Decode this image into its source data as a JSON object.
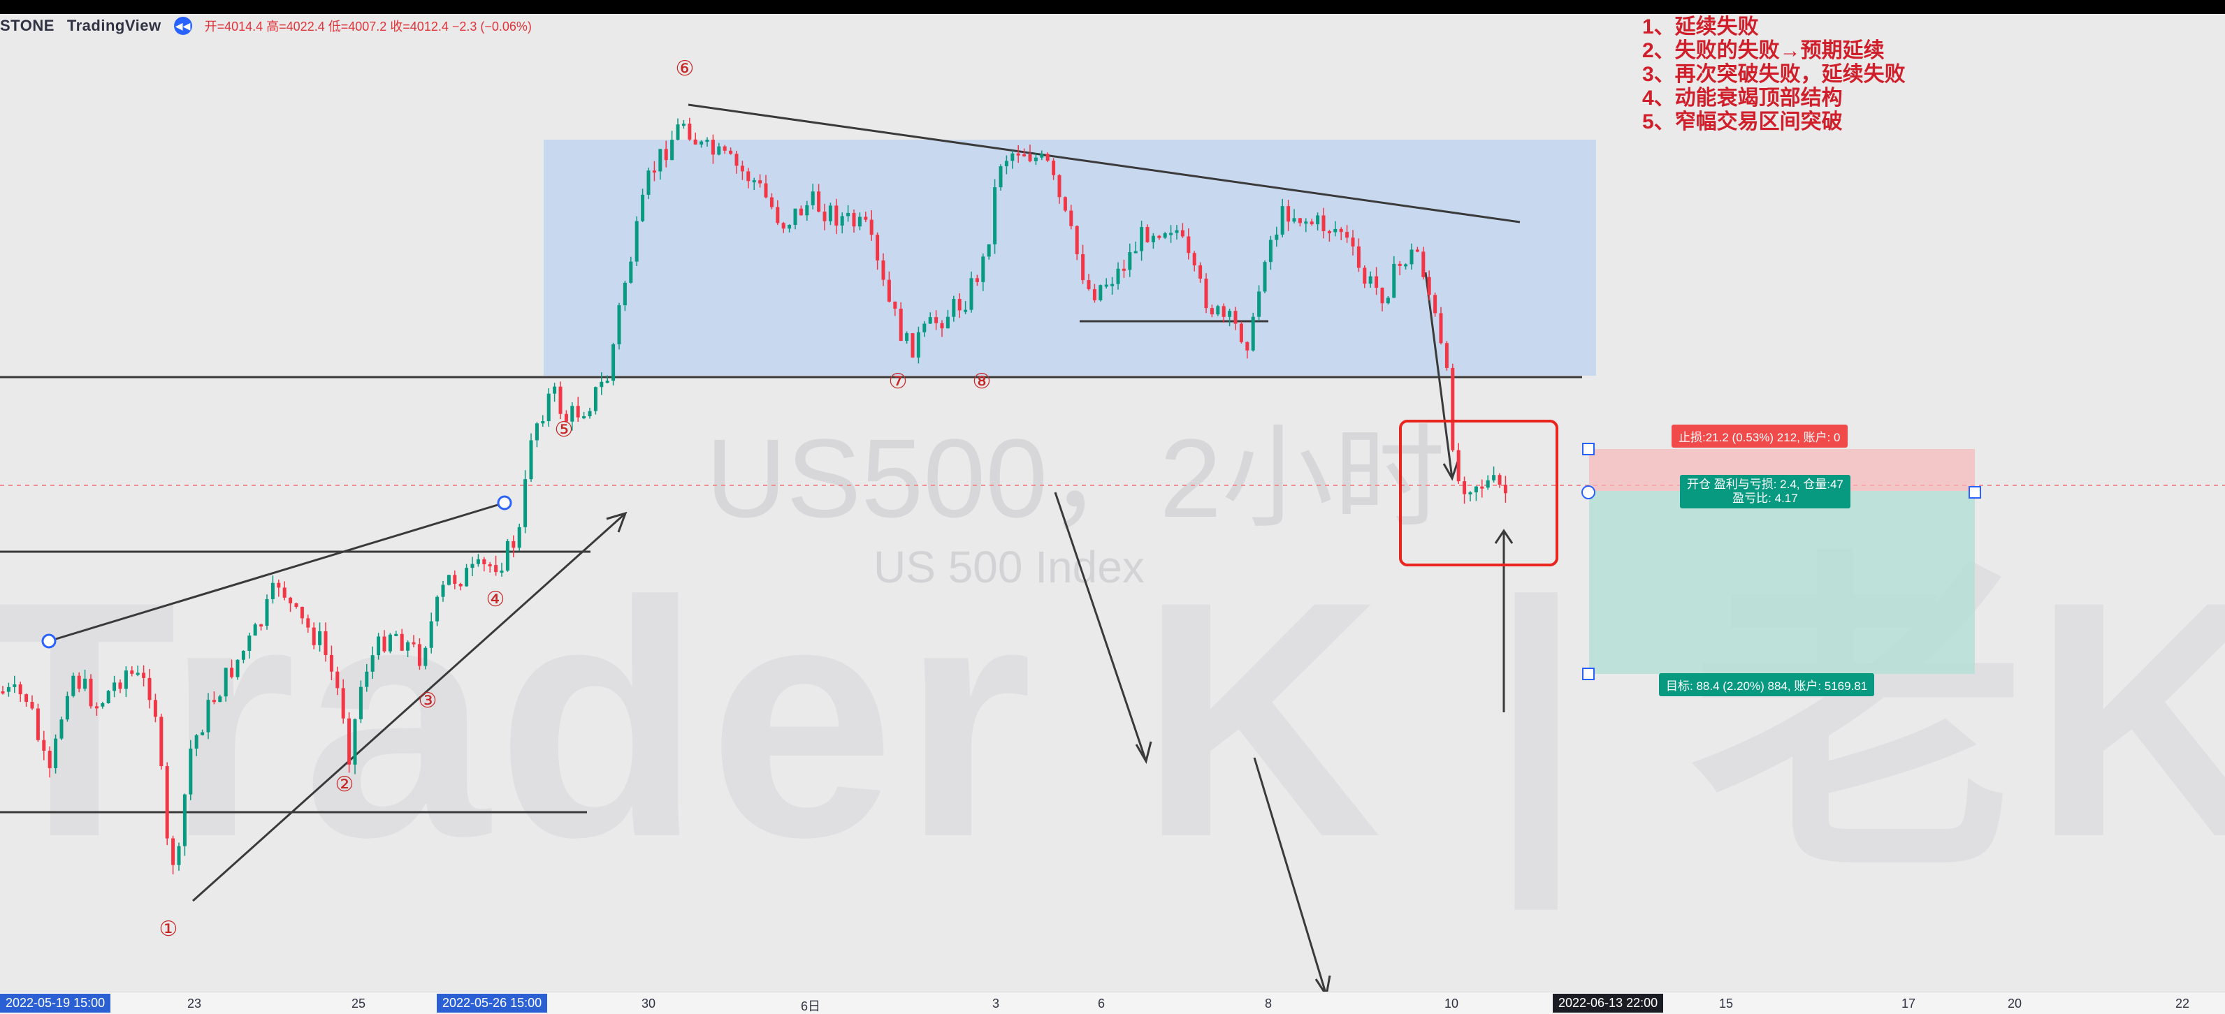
{
  "header": {
    "symbol": "STONE",
    "brand": "TradingView",
    "ohlc": "开=4014.4 高=4022.4 低=4007.2 收=4012.4 −2.3 (−0.06%)"
  },
  "watermark": {
    "title": "US500，2小时",
    "subtitle": "US 500 Index",
    "bg_text": "Trader K | 老K"
  },
  "notes": [
    "1、延续失败",
    "2、失败的失败→预期延续",
    "3、再次突破失败，延续失败",
    "4、动能衰竭顶部结构",
    "5、窄幅交易区间突破"
  ],
  "markers": [
    "①",
    "②",
    "③",
    "④",
    "⑤",
    "⑥",
    "⑦",
    "⑧"
  ],
  "position": {
    "stop_label": "止损:21.2 (0.53%) 212, 账户: 0",
    "open_line1": "开仓 盈利与亏损: 2.4, 仓量:47",
    "open_line2": "盈亏比: 4.17",
    "target_label": "目标: 88.4 (2.20%) 884, 账户: 5169.81"
  },
  "xaxis": {
    "labels": [
      "2022-05-19   15:00",
      "23",
      "25",
      "2022-05-26   15:00",
      "30",
      "6日",
      "3",
      "6",
      "8",
      "10",
      "2022-06-13   22:00",
      "15",
      "17",
      "20",
      "22"
    ]
  },
  "colors": {
    "up": "#089981",
    "down": "#f23645",
    "range_box": "#bcd2f0",
    "accent": "#2962ff",
    "note": "#d01f2a"
  }
}
